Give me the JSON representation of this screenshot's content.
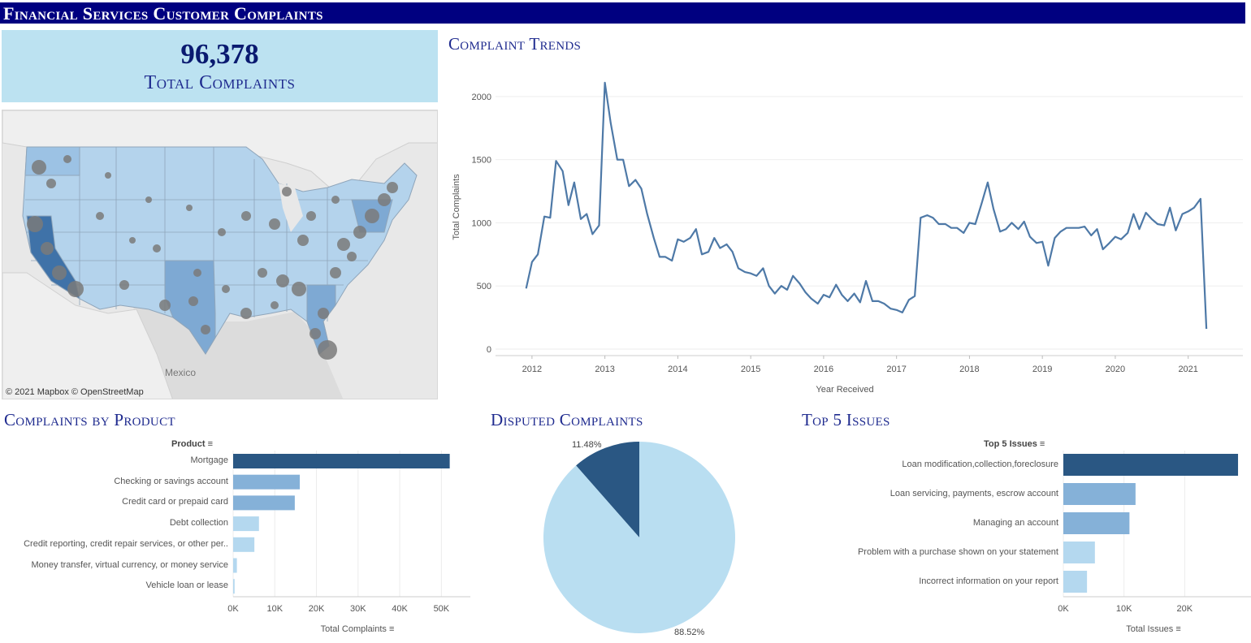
{
  "dashboard": {
    "title": "Financial Services Customer Complaints",
    "kpi_value": "96,378",
    "kpi_label": "Total Complaints",
    "trend_title": "Complaint Trends",
    "product_title": "Complaints by Product",
    "disputed_title": "Disputed Complaints",
    "issues_title": "Top 5 Issues"
  },
  "map": {
    "credit": "© 2021 Mapbox  © OpenStreetMap",
    "mexico_label": "Mexico",
    "state_fill": "#b4d3ec",
    "state_highlight": "#7ea9d3",
    "state_dark": "#3f72a8",
    "bubble_color": "#7a7a7a"
  },
  "colors": {
    "line": "#4e79a7",
    "dark_bar": "#2a5783",
    "mid_bar": "#85b1d8",
    "light_bar": "#b4d8ef",
    "pie_dark": "#2a5783",
    "pie_light": "#b9def1"
  },
  "chart_data": [
    {
      "type": "line",
      "xlabel": "Year Received",
      "ylabel": "Total Complaints",
      "xlim": [
        2011.5,
        2021.75
      ],
      "ylim": [
        0,
        2250
      ],
      "x_ticks": [
        "2012",
        "2013",
        "2014",
        "2015",
        "2016",
        "2017",
        "2018",
        "2019",
        "2020",
        "2021"
      ],
      "y_ticks": [
        "0",
        "500",
        "1000",
        "1500",
        "2000"
      ],
      "x": [
        2011.92,
        2012.0,
        2012.08,
        2012.17,
        2012.25,
        2012.33,
        2012.42,
        2012.5,
        2012.58,
        2012.67,
        2012.75,
        2012.83,
        2012.92,
        2013.0,
        2013.08,
        2013.17,
        2013.25,
        2013.33,
        2013.42,
        2013.5,
        2013.58,
        2013.67,
        2013.75,
        2013.83,
        2013.92,
        2014.0,
        2014.08,
        2014.17,
        2014.25,
        2014.33,
        2014.42,
        2014.5,
        2014.58,
        2014.67,
        2014.75,
        2014.83,
        2014.92,
        2015.0,
        2015.08,
        2015.17,
        2015.25,
        2015.33,
        2015.42,
        2015.5,
        2015.58,
        2015.67,
        2015.75,
        2015.83,
        2015.92,
        2016.0,
        2016.08,
        2016.17,
        2016.25,
        2016.33,
        2016.42,
        2016.5,
        2016.58,
        2016.67,
        2016.75,
        2016.83,
        2016.92,
        2017.0,
        2017.08,
        2017.17,
        2017.25,
        2017.33,
        2017.42,
        2017.5,
        2017.58,
        2017.67,
        2017.75,
        2017.83,
        2017.92,
        2018.0,
        2018.08,
        2018.17,
        2018.25,
        2018.33,
        2018.42,
        2018.5,
        2018.58,
        2018.67,
        2018.75,
        2018.83,
        2018.92,
        2019.0,
        2019.08,
        2019.17,
        2019.25,
        2019.33,
        2019.42,
        2019.5,
        2019.58,
        2019.67,
        2019.75,
        2019.83,
        2019.92,
        2020.0,
        2020.08,
        2020.17,
        2020.25,
        2020.33,
        2020.42,
        2020.5,
        2020.58,
        2020.67,
        2020.75,
        2020.83,
        2020.92,
        2021.0,
        2021.08,
        2021.17,
        2021.25
      ],
      "values": [
        480,
        690,
        750,
        1050,
        1040,
        1490,
        1410,
        1140,
        1320,
        1030,
        1070,
        910,
        980,
        2110,
        1790,
        1500,
        1500,
        1290,
        1340,
        1270,
        1070,
        880,
        730,
        730,
        700,
        870,
        850,
        880,
        950,
        750,
        770,
        880,
        800,
        830,
        770,
        640,
        610,
        600,
        580,
        640,
        500,
        440,
        500,
        470,
        580,
        520,
        450,
        400,
        360,
        430,
        410,
        510,
        430,
        380,
        440,
        370,
        540,
        380,
        380,
        360,
        320,
        310,
        290,
        390,
        420,
        1040,
        1060,
        1040,
        990,
        990,
        960,
        960,
        920,
        1000,
        990,
        1160,
        1320,
        1110,
        930,
        950,
        1000,
        950,
        1010,
        890,
        840,
        850,
        660,
        880,
        930,
        960,
        960,
        960,
        970,
        900,
        950,
        790,
        840,
        890,
        870,
        920,
        1070,
        950,
        1080,
        1030,
        990,
        980,
        1120,
        940,
        1070,
        1090,
        1120,
        1190,
        160
      ]
    },
    {
      "type": "bar",
      "orientation": "horizontal",
      "header": "Product",
      "xlabel": "Total Complaints",
      "categories": [
        "Mortgage",
        "Checking or savings account",
        "Credit card or prepaid card",
        "Debt collection",
        "Credit reporting, credit repair services, or other per..",
        "Money transfer, virtual currency, or money service",
        "Vehicle loan or lease"
      ],
      "values": [
        52000,
        16000,
        14800,
        6200,
        5100,
        900,
        350
      ],
      "x_ticks": [
        "0K",
        "10K",
        "20K",
        "30K",
        "40K",
        "50K"
      ],
      "xlim": [
        0,
        55000
      ]
    },
    {
      "type": "pie",
      "slices": [
        {
          "label": "11.48%",
          "value": 11.48
        },
        {
          "label": "88.52%",
          "value": 88.52
        }
      ]
    },
    {
      "type": "bar",
      "orientation": "horizontal",
      "header": "Top 5 Issues",
      "xlabel": "Total Issues",
      "categories": [
        "Loan modification,collection,foreclosure",
        "Loan servicing, payments, escrow account",
        "Managing an account",
        "Problem with a purchase shown on your statement",
        "Incorrect information on your report"
      ],
      "values": [
        28800,
        11900,
        10900,
        5200,
        3900
      ],
      "x_ticks": [
        "0K",
        "10K",
        "20K"
      ],
      "xlim": [
        0,
        30000
      ]
    }
  ]
}
